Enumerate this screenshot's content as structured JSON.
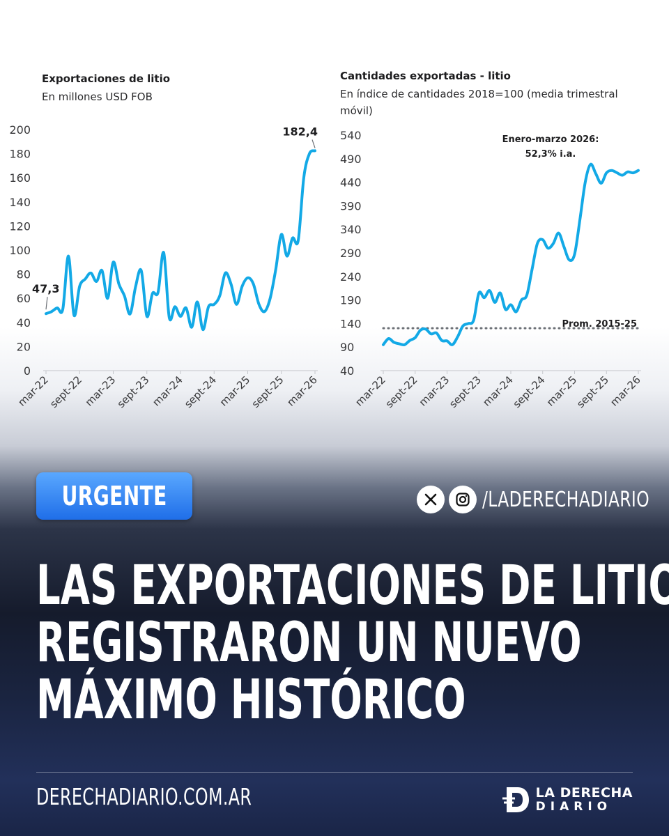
{
  "colors": {
    "line": "#13a9e6",
    "avg_line": "#6b6f75",
    "badge": "#2b7df0"
  },
  "chart_data": [
    {
      "type": "line",
      "title": "Exportaciones de litio",
      "subtitle": "En millones USD FOB",
      "ylim": [
        0,
        200
      ],
      "yticks": [
        "0",
        "20",
        "40",
        "60",
        "80",
        "100",
        "120",
        "140",
        "160",
        "180",
        "200"
      ],
      "xticks": [
        "mar-22",
        "sept-22",
        "mar-23",
        "sept-23",
        "mar-24",
        "sept-24",
        "mar-25",
        "sept-25",
        "mar-26"
      ],
      "x_index_range": [
        0,
        48
      ],
      "annotations": {
        "start": "47,3",
        "end": "182,4"
      },
      "series": [
        {
          "x": [
            0,
            1,
            2,
            3,
            4,
            5,
            6,
            7,
            8,
            9,
            10,
            11,
            12,
            13,
            14,
            15,
            16,
            17,
            18,
            19,
            20,
            21,
            22,
            23,
            24,
            25,
            26,
            27,
            28,
            29,
            30,
            31,
            32,
            33,
            34,
            35,
            36,
            37,
            38,
            39,
            40,
            41,
            42,
            43,
            44,
            45,
            46,
            47,
            48
          ],
          "values": [
            47.3,
            49,
            52,
            51,
            95,
            46,
            70,
            76,
            81,
            74,
            83,
            60,
            90,
            72,
            62,
            47,
            70,
            83,
            45,
            64,
            65,
            98,
            44,
            53,
            45,
            52,
            36,
            57,
            34,
            53,
            55,
            62,
            81,
            72,
            55,
            70,
            77,
            72,
            55,
            49,
            60,
            84,
            113,
            95,
            110,
            108,
            160,
            180,
            182.4
          ]
        }
      ]
    },
    {
      "type": "line",
      "title": "Cantidades exportadas - litio",
      "subtitle": "En índice de cantidades 2018=100 (media trimestral móvil)",
      "ylim": [
        40,
        540
      ],
      "yticks": [
        "40",
        "90",
        "140",
        "190",
        "240",
        "290",
        "340",
        "390",
        "440",
        "490",
        "540"
      ],
      "xticks": [
        "mar-22",
        "sept-22",
        "mar-23",
        "sept-23",
        "mar-24",
        "sept-24",
        "mar-25",
        "sept-25",
        "mar-26"
      ],
      "x_index_range": [
        0,
        48
      ],
      "reference_line": {
        "value": 130,
        "label": "Prom. 2015-25"
      },
      "annotation": {
        "line1": "Enero-marzo 2026:",
        "line2": "52,3% i.a."
      },
      "series": [
        {
          "x": [
            0,
            1,
            2,
            3,
            4,
            5,
            6,
            7,
            8,
            9,
            10,
            11,
            12,
            13,
            14,
            15,
            16,
            17,
            18,
            19,
            20,
            21,
            22,
            23,
            24,
            25,
            26,
            27,
            28,
            29,
            30,
            31,
            32,
            33,
            34,
            35,
            36,
            37,
            38,
            39,
            40,
            41,
            42,
            43,
            44,
            45,
            46,
            47,
            48
          ],
          "values": [
            95,
            108,
            100,
            97,
            95,
            104,
            110,
            126,
            128,
            118,
            120,
            104,
            103,
            95,
            112,
            135,
            140,
            147,
            205,
            195,
            210,
            185,
            205,
            170,
            180,
            165,
            190,
            200,
            255,
            310,
            318,
            300,
            310,
            332,
            303,
            275,
            287,
            360,
            440,
            478,
            458,
            438,
            460,
            465,
            460,
            455,
            462,
            460,
            465
          ]
        }
      ]
    }
  ],
  "badge": {
    "label": "URGENTE"
  },
  "social": {
    "x_icon": "x-icon",
    "ig_icon": "instagram-icon",
    "handle": "/LADERECHADIARIO"
  },
  "headline": {
    "line1": "LAS EXPORTACIONES DE LITIO",
    "line2": "REGISTRARON UN NUEVO",
    "line3": "MÁXIMO HISTÓRICO"
  },
  "footer": {
    "site": "DERECHADIARIO.COM.AR",
    "brand_line1": "LA DERECHA",
    "brand_line2": "DIARIO"
  }
}
